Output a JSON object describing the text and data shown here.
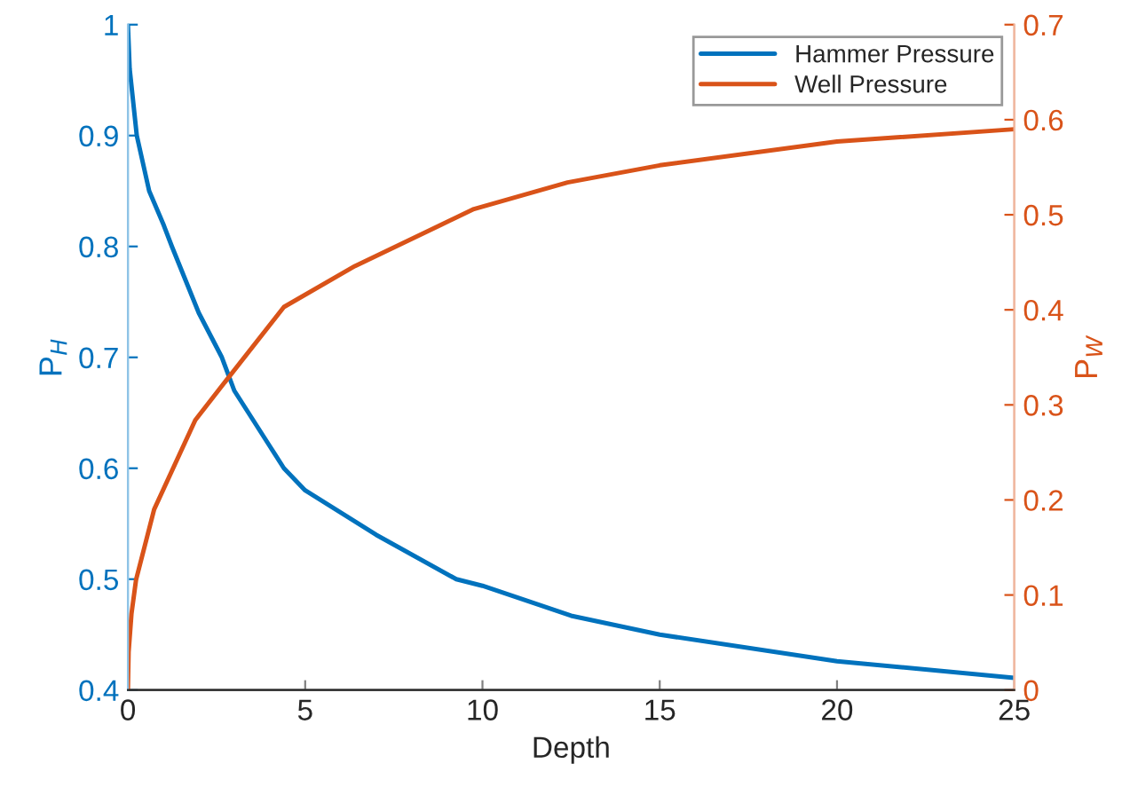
{
  "chart_data": {
    "type": "line",
    "xlabel": "Depth",
    "ylabel": "P$_{H}$",
    "y2label": "P$_{W}$",
    "xlim": [
      0,
      25
    ],
    "xticks": [
      0,
      5,
      10,
      15,
      20,
      25
    ],
    "ylim": [
      0.4,
      1
    ],
    "yticks": [
      0.4,
      0.5,
      0.6,
      0.7,
      0.8,
      0.9,
      1
    ],
    "y2lim": [
      0,
      0.7
    ],
    "y2ticks": [
      0,
      0.1,
      0.2,
      0.3,
      0.4,
      0.5,
      0.6,
      0.7
    ],
    "grid": false,
    "legend": "top right",
    "line_style": "solid",
    "marker": "none",
    "series": [
      {
        "name": "Hammer Pressure",
        "color": "#0072bd",
        "axis": "y",
        "x": [
          0,
          0.05,
          0.25,
          0.6,
          1,
          1.24,
          2,
          2.65,
          3,
          4,
          4.4,
          5,
          7,
          9.26,
          10,
          12.5,
          15,
          20,
          25
        ],
        "values": [
          1,
          0.96,
          0.9,
          0.85,
          0.82,
          0.8,
          0.74,
          0.7,
          0.67,
          0.62,
          0.6,
          0.58,
          0.54,
          0.5,
          0.494,
          0.467,
          0.45,
          0.426,
          0.411
        ]
      },
      {
        "name": "Well Pressure",
        "color": "#d95319",
        "axis": "y2",
        "x": [
          0,
          0.02,
          0.1,
          0.23,
          0.74,
          1.9,
          2.8,
          4.4,
          6.4,
          9.76,
          12.4,
          15,
          20,
          25
        ],
        "values": [
          0,
          0.04,
          0.08,
          0.116,
          0.19,
          0.284,
          0.327,
          0.403,
          0.446,
          0.506,
          0.534,
          0.552,
          0.577,
          0.59
        ]
      }
    ]
  }
}
